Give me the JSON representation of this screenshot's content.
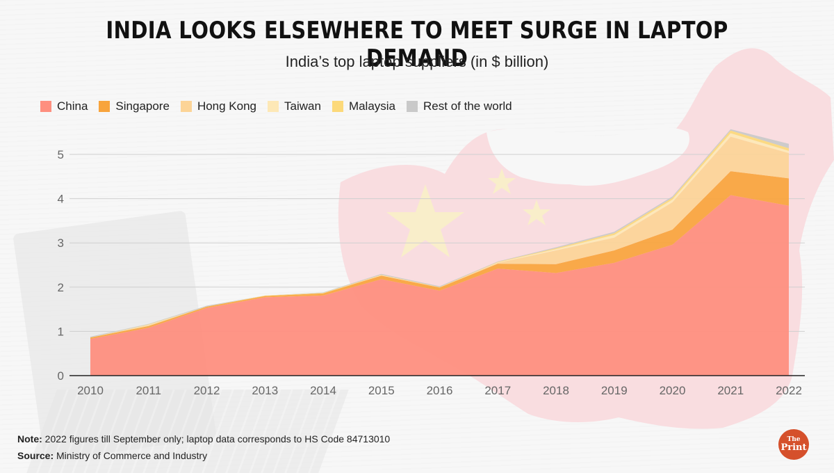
{
  "header": {
    "title": "INDIA LOOKS ELSEWHERE TO MEET SURGE IN LAPTOP DEMAND",
    "subtitle": "India’s top laptop suppliers (in $ billion)"
  },
  "footer": {
    "note_label": "Note:",
    "note_text": " 2022 figures till September only; laptop data corresponds to HS Code 84713010",
    "source_label": "Source:",
    "source_text": " Ministry of Commerce and Industry"
  },
  "logo": {
    "line1": "The",
    "line2": "Print",
    "color": "#d5502b"
  },
  "chart_data": {
    "type": "area",
    "stacked": true,
    "title": "India’s top laptop suppliers (in $ billion)",
    "xlabel": "",
    "ylabel": "",
    "categories": [
      "2010",
      "2011",
      "2012",
      "2013",
      "2014",
      "2015",
      "2016",
      "2017",
      "2018",
      "2019",
      "2020",
      "2021",
      "2022"
    ],
    "ylim": [
      0,
      5.5
    ],
    "yticks": [
      0,
      1,
      2,
      3,
      4,
      5
    ],
    "grid": true,
    "legend_position": "top-left",
    "series": [
      {
        "name": "China",
        "color": "#fe8f7f",
        "values": [
          0.83,
          1.08,
          1.53,
          1.77,
          1.81,
          2.18,
          1.92,
          2.42,
          2.32,
          2.55,
          2.96,
          4.08,
          3.84
        ]
      },
      {
        "name": "Singapore",
        "color": "#f8a43c",
        "values": [
          0.03,
          0.04,
          0.03,
          0.03,
          0.05,
          0.08,
          0.07,
          0.11,
          0.2,
          0.28,
          0.34,
          0.54,
          0.62
        ]
      },
      {
        "name": "Hong Kong",
        "color": "#fcd497",
        "values": [
          0.0,
          0.02,
          0.0,
          0.0,
          0.0,
          0.0,
          0.0,
          0.02,
          0.31,
          0.29,
          0.62,
          0.78,
          0.57
        ]
      },
      {
        "name": "Taiwan",
        "color": "#fde8b6",
        "values": [
          0.0,
          0.01,
          0.0,
          0.0,
          0.0,
          0.01,
          0.0,
          0.01,
          0.03,
          0.06,
          0.06,
          0.08,
          0.05
        ]
      },
      {
        "name": "Malaysia",
        "color": "#fcd97a",
        "values": [
          0.0,
          0.01,
          0.0,
          0.01,
          0.01,
          0.01,
          0.01,
          0.01,
          0.02,
          0.04,
          0.04,
          0.06,
          0.06
        ]
      },
      {
        "name": "Rest of the world",
        "color": "#c9c9c9",
        "values": [
          0.02,
          0.01,
          0.02,
          0.0,
          0.01,
          0.02,
          0.02,
          0.01,
          0.02,
          0.03,
          0.03,
          0.03,
          0.1
        ]
      }
    ]
  }
}
